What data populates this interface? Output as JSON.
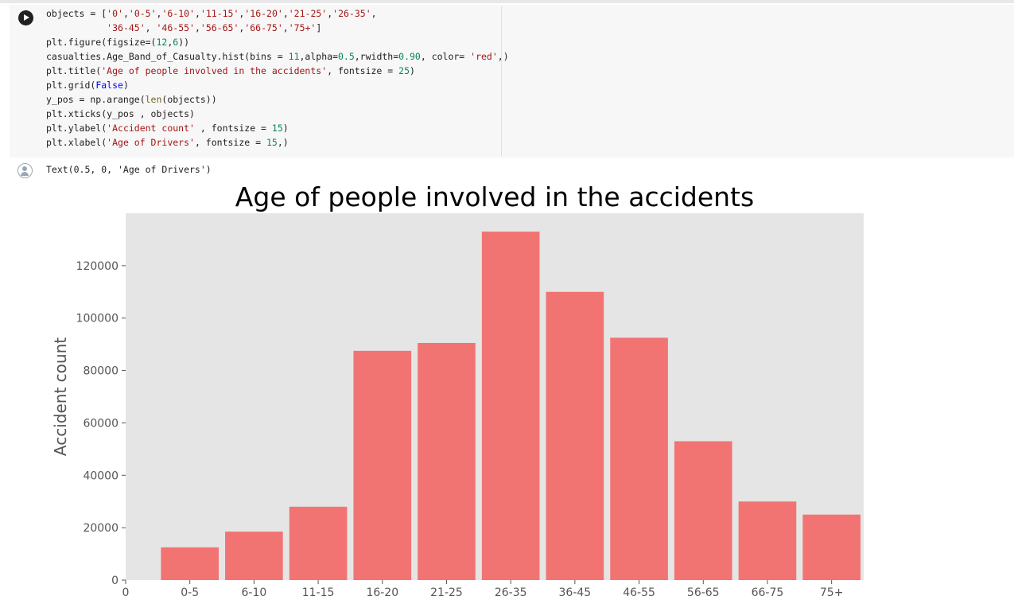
{
  "notebook": {
    "code_lines": [
      "objects = ['0','0-5','6-10','11-15','16-20','21-25','26-35',",
      "           '36-45', '46-55','56-65','66-75','75+']",
      "plt.figure(figsize=(12,6))",
      "casualties.Age_Band_of_Casualty.hist(bins = 11,alpha=0.5,rwidth=0.90, color= 'red',)",
      "plt.title('Age of people involved in the accidents', fontsize = 25)",
      "plt.grid(False)",
      "y_pos = np.arange(len(objects))",
      "plt.xticks(y_pos , objects)",
      "plt.ylabel('Accident count' , fontsize = 15)",
      "plt.xlabel('Age of Drivers', fontsize = 15,)"
    ],
    "output_text": "Text(0.5, 0, 'Age of Drivers')",
    "run_icon": "play-icon",
    "output_icon": "avatar-icon"
  },
  "chart_data": {
    "type": "bar",
    "title": "Age of people involved in the accidents",
    "ylabel": "Accident count",
    "xlabel": "",
    "x_ticks": [
      "0",
      "0-5",
      "6-10",
      "11-15",
      "16-20",
      "21-25",
      "26-35",
      "36-45",
      "46-55",
      "56-65",
      "66-75",
      "75+"
    ],
    "categories": [
      "0-5",
      "6-10",
      "11-15",
      "16-20",
      "21-25",
      "26-35",
      "36-45",
      "46-55",
      "56-65",
      "66-75",
      "75+"
    ],
    "values": [
      12500,
      18500,
      28000,
      87500,
      90500,
      133000,
      110000,
      92500,
      53000,
      30000,
      25000
    ],
    "y_ticks": [
      "0",
      "20000",
      "40000",
      "60000",
      "80000",
      "100000",
      "120000"
    ],
    "ylim": [
      0,
      140000
    ],
    "grid": false,
    "bar_color": "#f17472",
    "background": "#e5e5e5"
  }
}
